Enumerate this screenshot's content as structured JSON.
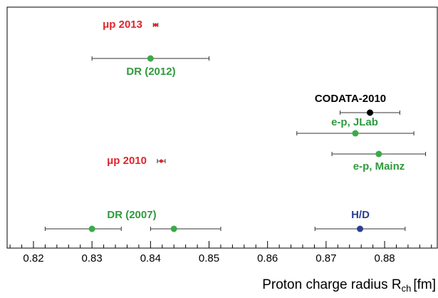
{
  "chart_data": {
    "type": "errorbar",
    "xlabel": "Proton charge radius R",
    "xlabel_sub": "ch",
    "xlabel_unit": "[fm]",
    "xlim": [
      0.8155,
      0.889
    ],
    "xticks": [
      0.82,
      0.83,
      0.84,
      0.85,
      0.86,
      0.87,
      0.88
    ],
    "xminorticks": [
      0.816,
      0.818,
      0.822,
      0.824,
      0.826,
      0.828,
      0.832,
      0.834,
      0.836,
      0.838,
      0.842,
      0.844,
      0.846,
      0.848,
      0.852,
      0.854,
      0.856,
      0.858,
      0.862,
      0.864,
      0.866,
      0.868,
      0.872,
      0.874,
      0.876,
      0.878,
      0.882,
      0.884,
      0.886,
      0.888
    ],
    "groups": [
      {
        "name": "μp 2013",
        "color": "#e3242b",
        "points": [
          {
            "value": 0.84087,
            "err_minus": 0.00039,
            "err_plus": 0.00039
          }
        ]
      },
      {
        "name": "DR (2012)",
        "color": "#3aab47",
        "points": [
          {
            "value": 0.84,
            "err_minus": 0.01,
            "err_plus": 0.01
          }
        ]
      },
      {
        "name": "CODATA-2010",
        "color": "#000000",
        "points": [
          {
            "value": 0.8775,
            "err_minus": 0.0051,
            "err_plus": 0.0051
          }
        ]
      },
      {
        "name": "e-p, JLab",
        "color": "#3aab47",
        "points": [
          {
            "value": 0.875,
            "err_minus": 0.01,
            "err_plus": 0.01
          }
        ]
      },
      {
        "name": "μp 2010",
        "color": "#e3242b",
        "points": [
          {
            "value": 0.84184,
            "err_minus": 0.00067,
            "err_plus": 0.00067
          }
        ]
      },
      {
        "name": "e-p, Mainz",
        "color": "#3aab47",
        "points": [
          {
            "value": 0.879,
            "err_minus": 0.008,
            "err_plus": 0.008
          }
        ]
      },
      {
        "name": "DR (2007)",
        "color": "#3aab47",
        "points": [
          {
            "value": 0.83,
            "err_minus": 0.008,
            "err_plus": 0.005
          },
          {
            "value": 0.844,
            "err_minus": 0.004,
            "err_plus": 0.008
          }
        ]
      },
      {
        "name": "H/D",
        "color": "#2b3f96",
        "points": [
          {
            "value": 0.8758,
            "err_minus": 0.0077,
            "err_plus": 0.0077
          }
        ]
      }
    ]
  }
}
